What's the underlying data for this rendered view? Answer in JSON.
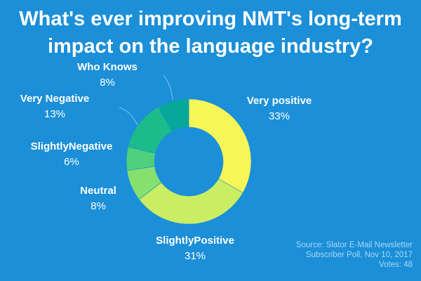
{
  "title_lines": [
    "What's ever improving NMT's long-term",
    "impact on the language industry?"
  ],
  "source_lines": [
    "Source: Slator E-Mail Newsletter",
    "Subscriber Poll, Nov 10, 2017",
    "Votes: 48"
  ],
  "chart_data": {
    "type": "pie",
    "title": "What's ever improving NMT's long-term impact on the language industry?",
    "slices": [
      {
        "label": "Very positive",
        "pct_label": "33%",
        "value": 33,
        "color": "#f6f658"
      },
      {
        "label": "SlightlyPositive",
        "pct_label": "31%",
        "value": 31,
        "color": "#c9ee62"
      },
      {
        "label": "Neutral",
        "pct_label": "8%",
        "value": 8,
        "color": "#86e06e"
      },
      {
        "label": "SlightlyNegative",
        "pct_label": "6%",
        "value": 6,
        "color": "#4fd07c"
      },
      {
        "label": "Very Negative",
        "pct_label": "13%",
        "value": 13,
        "color": "#1cbc8a"
      },
      {
        "label": "Who Knows",
        "pct_label": "8%",
        "value": 8,
        "color": "#07a79a"
      }
    ]
  }
}
